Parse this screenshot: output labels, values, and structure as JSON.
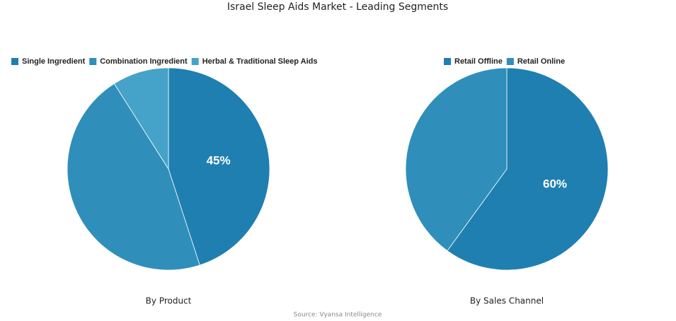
{
  "title": "Israel Sleep Aids Market - Leading Segments",
  "source": "Source: Vyansa Intelligence",
  "chart_data": [
    {
      "type": "pie",
      "subtitle": "By Product",
      "categories": [
        "Single Ingredient",
        "Combination Ingredient",
        "Herbal & Traditional Sleep Aids"
      ],
      "values": [
        45,
        46,
        9
      ],
      "value_labels": [
        "45%",
        null,
        null
      ],
      "colors": [
        "#1f7fb0",
        "#2f8fba",
        "#45a2c8"
      ]
    },
    {
      "type": "pie",
      "subtitle": "By Sales Channel",
      "categories": [
        "Retail Offline",
        "Retail Online"
      ],
      "values": [
        60,
        40
      ],
      "value_labels": [
        "60%",
        null
      ],
      "colors": [
        "#1f7fb0",
        "#2f8fba"
      ]
    }
  ]
}
